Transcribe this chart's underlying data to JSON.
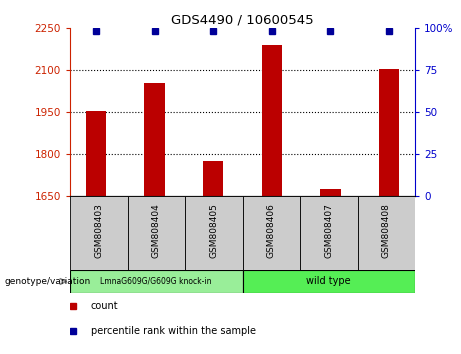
{
  "title": "GDS4490 / 10600545",
  "samples": [
    "GSM808403",
    "GSM808404",
    "GSM808405",
    "GSM808406",
    "GSM808407",
    "GSM808408"
  ],
  "counts": [
    1955,
    2055,
    1775,
    2190,
    1675,
    2105
  ],
  "percentile_value": 99,
  "ylim_left": [
    1650,
    2250
  ],
  "yticks_left": [
    1650,
    1800,
    1950,
    2100,
    2250
  ],
  "ylim_right": [
    0,
    100
  ],
  "yticks_right": [
    0,
    25,
    50,
    75,
    100
  ],
  "bar_color": "#bb0000",
  "dot_color": "#000099",
  "group1_label": "LmnaG609G/G609G knock-in",
  "group1_color": "#99ee99",
  "group2_label": "wild type",
  "group2_color": "#55ee55",
  "xlabel_group": "genotype/variation",
  "legend_count_label": "count",
  "legend_percentile_label": "percentile rank within the sample",
  "left_tick_color": "#cc2200",
  "right_tick_color": "#0000cc",
  "sample_bg_color": "#cccccc",
  "bar_width": 0.35
}
